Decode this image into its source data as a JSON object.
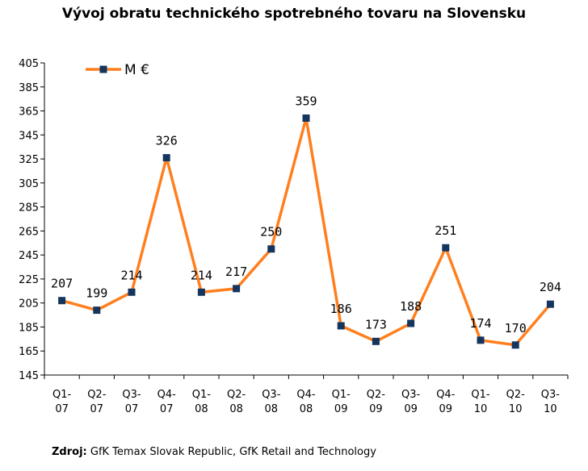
{
  "chart_data": {
    "type": "line",
    "title": "Vývoj obratu technického spotrebného tovaru na Slovensku",
    "categories": [
      [
        "Q1-",
        "07"
      ],
      [
        "Q2-",
        "07"
      ],
      [
        "Q3-",
        "07"
      ],
      [
        "Q4-",
        "07"
      ],
      [
        "Q1-",
        "08"
      ],
      [
        "Q2-",
        "08"
      ],
      [
        "Q3-",
        "08"
      ],
      [
        "Q4-",
        "08"
      ],
      [
        "Q1-",
        "09"
      ],
      [
        "Q2-",
        "09"
      ],
      [
        "Q3-",
        "09"
      ],
      [
        "Q4-",
        "09"
      ],
      [
        "Q1-",
        "10"
      ],
      [
        "Q2-",
        "10"
      ],
      [
        "Q3-",
        "10"
      ]
    ],
    "series": [
      {
        "name": "M €",
        "values": [
          207,
          199,
          214,
          326,
          214,
          217,
          250,
          359,
          186,
          173,
          188,
          251,
          174,
          170,
          204
        ],
        "color": "#ff7f1e",
        "marker_color": "#14355e"
      }
    ],
    "ylim": [
      145,
      405
    ],
    "yticks": [
      145,
      165,
      185,
      205,
      225,
      245,
      265,
      285,
      305,
      325,
      345,
      365,
      385,
      405
    ],
    "legend_position": "top-left",
    "grid": false
  },
  "source": {
    "label": "Zdroj:",
    "text": " GfK Temax Slovak Republic, GfK Retail and Technology"
  }
}
